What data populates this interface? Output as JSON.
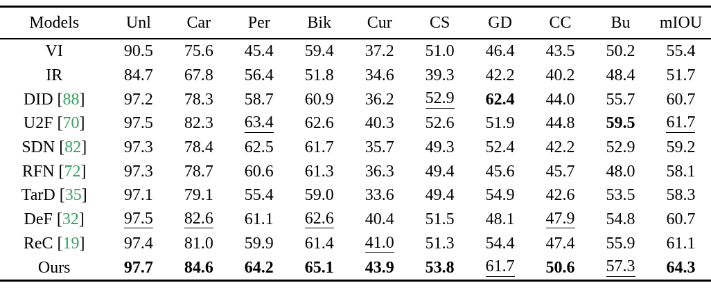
{
  "table": {
    "columns": [
      "Models",
      "Unl",
      "Car",
      "Per",
      "Bik",
      "Cur",
      "CS",
      "GD",
      "CC",
      "Bu",
      "mIOU"
    ],
    "rows": [
      {
        "model": "VI",
        "cite": null,
        "values": [
          "90.5",
          "75.6",
          "45.4",
          "59.4",
          "37.2",
          "51.0",
          "46.4",
          "43.5",
          "50.2",
          "55.4"
        ],
        "bold": [],
        "underline": []
      },
      {
        "model": "IR",
        "cite": null,
        "values": [
          "84.7",
          "67.8",
          "56.4",
          "51.8",
          "34.6",
          "39.3",
          "42.2",
          "40.2",
          "48.4",
          "51.7"
        ],
        "bold": [],
        "underline": []
      },
      {
        "model": "DID",
        "cite": "88",
        "values": [
          "97.2",
          "78.3",
          "58.7",
          "60.9",
          "36.2",
          "52.9",
          "62.4",
          "44.0",
          "55.7",
          "60.7"
        ],
        "bold": [
          6
        ],
        "underline": [
          5
        ]
      },
      {
        "model": "U2F",
        "cite": "70",
        "values": [
          "97.5",
          "82.3",
          "63.4",
          "62.6",
          "40.3",
          "52.6",
          "51.9",
          "44.8",
          "59.5",
          "61.7"
        ],
        "bold": [
          8
        ],
        "underline": [
          2,
          9
        ]
      },
      {
        "model": "SDN",
        "cite": "82",
        "values": [
          "97.3",
          "78.4",
          "62.5",
          "61.7",
          "35.7",
          "49.3",
          "52.4",
          "42.2",
          "52.9",
          "59.2"
        ],
        "bold": [],
        "underline": []
      },
      {
        "model": "RFN",
        "cite": "72",
        "values": [
          "97.3",
          "78.7",
          "60.6",
          "61.3",
          "36.3",
          "49.4",
          "45.6",
          "45.7",
          "48.0",
          "58.1"
        ],
        "bold": [],
        "underline": []
      },
      {
        "model": "TarD",
        "cite": "35",
        "values": [
          "97.1",
          "79.1",
          "55.4",
          "59.0",
          "33.6",
          "49.4",
          "54.9",
          "42.6",
          "53.5",
          "58.3"
        ],
        "bold": [],
        "underline": []
      },
      {
        "model": "DeF",
        "cite": "32",
        "values": [
          "97.5",
          "82.6",
          "61.1",
          "62.6",
          "40.4",
          "51.5",
          "48.1",
          "47.9",
          "54.8",
          "60.7"
        ],
        "bold": [],
        "underline": [
          0,
          1,
          3,
          7
        ]
      },
      {
        "model": "ReC",
        "cite": "19",
        "values": [
          "97.4",
          "81.0",
          "59.9",
          "61.4",
          "41.0",
          "51.3",
          "54.4",
          "47.4",
          "55.9",
          "61.1"
        ],
        "bold": [],
        "underline": [
          4
        ]
      },
      {
        "model": "Ours",
        "cite": null,
        "values": [
          "97.7",
          "84.6",
          "64.2",
          "65.1",
          "43.9",
          "53.8",
          "61.7",
          "50.6",
          "57.3",
          "64.3"
        ],
        "bold": [
          0,
          1,
          2,
          3,
          4,
          5,
          7,
          9
        ],
        "underline": [
          6,
          8
        ]
      }
    ]
  },
  "colors": {
    "citation_green": "#2EA25C",
    "text": "#000000",
    "background": "#FFFFFF"
  }
}
